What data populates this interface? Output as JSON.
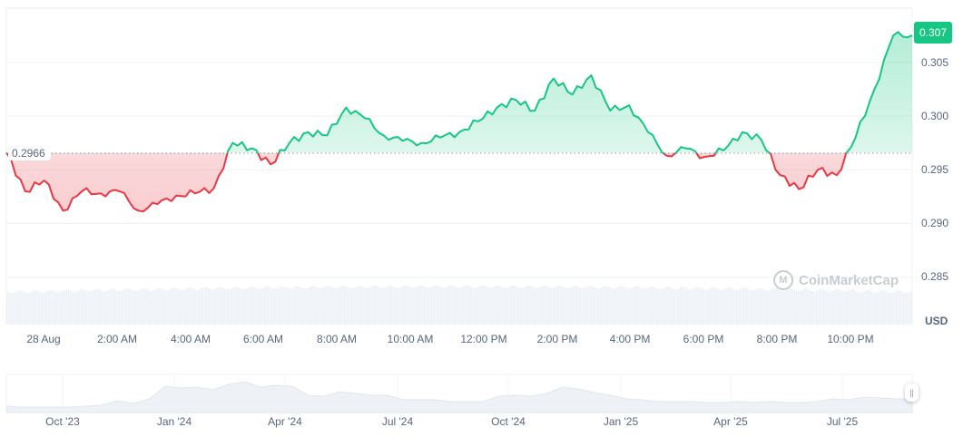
{
  "chart_data": {
    "type": "line",
    "title": "",
    "xlabel": "",
    "ylabel": "USD",
    "currency_label": "USD",
    "baseline": {
      "value": 0.2966,
      "label": "0.2966"
    },
    "current_price": {
      "value": 0.307,
      "label": "0.307"
    },
    "ylim": [
      0.2835,
      0.3085
    ],
    "y_ticks": [
      "0.305",
      "0.300",
      "0.295",
      "0.290",
      "0.285"
    ],
    "x_ticks": [
      "28 Aug",
      "2:00 AM",
      "4:00 AM",
      "6:00 AM",
      "8:00 AM",
      "10:00 AM",
      "12:00 PM",
      "2:00 PM",
      "4:00 PM",
      "6:00 PM",
      "8:00 PM",
      "10:00 PM"
    ],
    "grid": true,
    "colors": {
      "up": "#16c784",
      "down": "#ea3943",
      "grid": "#eff2f5",
      "axis_text": "#58667e",
      "volume": "#eef1f5"
    },
    "series": [
      {
        "name": "Price",
        "x": [
          "00:00",
          "00:30",
          "01:00",
          "01:30",
          "02:00",
          "02:30",
          "03:00",
          "03:30",
          "04:00",
          "04:30",
          "05:00",
          "05:30",
          "06:00",
          "06:30",
          "07:00",
          "07:30",
          "08:00",
          "08:30",
          "09:00",
          "09:30",
          "10:00",
          "10:30",
          "11:00",
          "11:30",
          "12:00",
          "12:30",
          "13:00",
          "13:30",
          "14:00",
          "14:30",
          "15:00",
          "15:30",
          "16:00",
          "16:30",
          "17:00",
          "17:30",
          "18:00",
          "18:30",
          "19:00",
          "19:30",
          "20:00",
          "20:30",
          "21:00",
          "21:30",
          "22:00",
          "22:30",
          "23:00",
          "23:30",
          "23:55"
        ],
        "values": [
          0.2966,
          0.293,
          0.294,
          0.2912,
          0.293,
          0.2928,
          0.293,
          0.2912,
          0.2918,
          0.2926,
          0.2928,
          0.2933,
          0.2975,
          0.297,
          0.2955,
          0.2975,
          0.2985,
          0.2982,
          0.3008,
          0.2998,
          0.2982,
          0.2977,
          0.2975,
          0.298,
          0.2985,
          0.2995,
          0.3008,
          0.3015,
          0.3005,
          0.3035,
          0.302,
          0.3038,
          0.3005,
          0.301,
          0.2985,
          0.2963,
          0.297,
          0.2962,
          0.2968,
          0.2985,
          0.2978,
          0.2945,
          0.2932,
          0.295,
          0.2945,
          0.298,
          0.3025,
          0.3075,
          0.3075
        ]
      }
    ],
    "navigator": {
      "x_ticks": [
        "Oct '23",
        "Jan '24",
        "Apr '24",
        "Jul '24",
        "Oct '24",
        "Jan '25",
        "Apr '25",
        "Jul '25"
      ]
    }
  },
  "watermark": {
    "text": "CoinMarketCap"
  },
  "navigator_handle": {
    "glyph": "||"
  }
}
